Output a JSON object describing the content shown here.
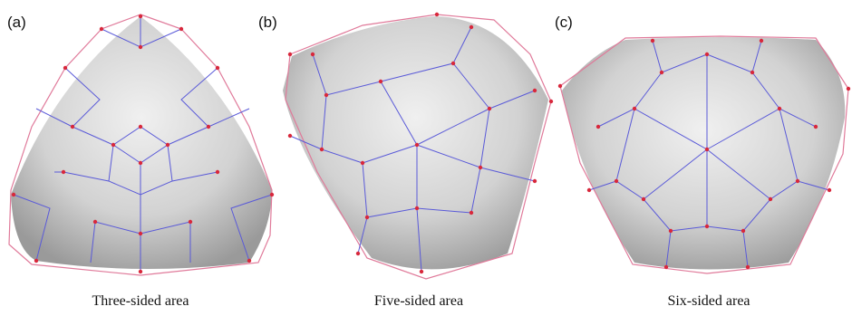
{
  "panels": [
    {
      "label": "(a)",
      "caption": "Three-sided area"
    },
    {
      "label": "(b)",
      "caption": "Five-sided area"
    },
    {
      "label": "(c)",
      "caption": "Six-sided area"
    }
  ]
}
